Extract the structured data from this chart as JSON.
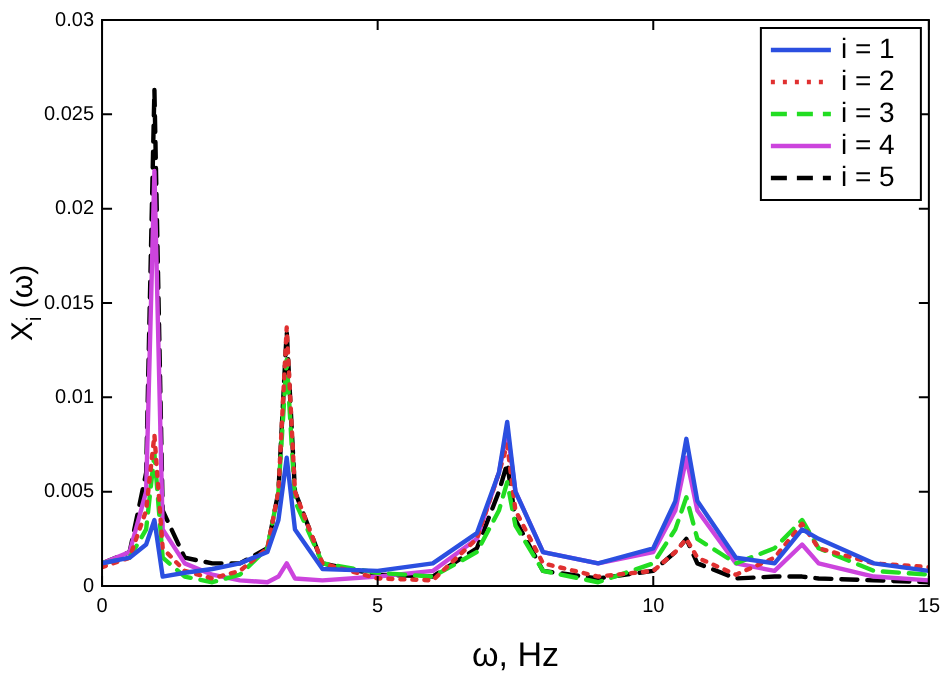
{
  "chart_data": {
    "type": "line",
    "xlabel": "ω, Hz",
    "ylabel": "X$_{i}$ (ω)",
    "x": [
      0,
      0.5,
      0.8,
      0.95,
      1.1,
      1.5,
      2,
      2.5,
      3,
      3.2,
      3.35,
      3.5,
      4,
      5,
      6,
      6.8,
      7.2,
      7.35,
      7.5,
      8,
      9,
      10,
      10.4,
      10.6,
      10.8,
      11.5,
      12.2,
      12.7,
      13,
      14,
      15
    ],
    "series": [
      {
        "name": "i = 1",
        "color": "#2b4fe0",
        "line_style": "solid",
        "values": [
          0.0012,
          0.0015,
          0.0022,
          0.0035,
          0.0005,
          0.0007,
          0.0009,
          0.0012,
          0.0018,
          0.0035,
          0.0068,
          0.003,
          0.0009,
          0.0008,
          0.0012,
          0.0028,
          0.006,
          0.0087,
          0.005,
          0.0018,
          0.0012,
          0.002,
          0.0045,
          0.0078,
          0.0045,
          0.0015,
          0.0012,
          0.003,
          0.0025,
          0.0012,
          0.0008
        ]
      },
      {
        "name": "i = 2",
        "color": "#e03030",
        "line_style": "dotted",
        "values": [
          0.001,
          0.0015,
          0.004,
          0.008,
          0.002,
          0.0008,
          0.0004,
          0.0008,
          0.002,
          0.005,
          0.0137,
          0.005,
          0.0012,
          0.0004,
          0.0003,
          0.0025,
          0.006,
          0.0075,
          0.004,
          0.0012,
          0.0005,
          0.0008,
          0.0018,
          0.0025,
          0.0015,
          0.0006,
          0.0015,
          0.0033,
          0.002,
          0.0012,
          0.001
        ]
      },
      {
        "name": "i = 3",
        "color": "#22dd22",
        "line_style": "dashed",
        "values": [
          0.0012,
          0.0015,
          0.003,
          0.007,
          0.0015,
          0.0005,
          0.0002,
          0.0006,
          0.002,
          0.005,
          0.012,
          0.0045,
          0.0012,
          0.0007,
          0.0005,
          0.0018,
          0.004,
          0.0055,
          0.0032,
          0.0008,
          0.0002,
          0.0012,
          0.003,
          0.0047,
          0.0025,
          0.0012,
          0.002,
          0.0035,
          0.002,
          0.0008,
          0.0006
        ]
      },
      {
        "name": "i = 4",
        "color": "#cc44dd",
        "line_style": "solid",
        "values": [
          0.0012,
          0.0018,
          0.005,
          0.022,
          0.003,
          0.0012,
          0.0006,
          0.0003,
          0.0002,
          0.0005,
          0.0012,
          0.0004,
          0.0003,
          0.0005,
          0.0008,
          0.0025,
          0.006,
          0.0083,
          0.005,
          0.0018,
          0.0012,
          0.0018,
          0.004,
          0.0068,
          0.004,
          0.0012,
          0.0008,
          0.0022,
          0.0012,
          0.0005,
          0.0003
        ]
      },
      {
        "name": "i = 5",
        "color": "#000000",
        "line_style": "dashed",
        "values": [
          0.0012,
          0.0018,
          0.006,
          0.0263,
          0.004,
          0.0015,
          0.0012,
          0.0012,
          0.002,
          0.005,
          0.0135,
          0.005,
          0.0012,
          0.0006,
          0.0005,
          0.002,
          0.005,
          0.0065,
          0.0035,
          0.0008,
          0.0004,
          0.0008,
          0.0018,
          0.0025,
          0.0012,
          0.0004,
          0.0005,
          0.0005,
          0.0004,
          0.0003,
          0.0002
        ]
      }
    ],
    "xlim": [
      0,
      15
    ],
    "xticks": [
      0,
      5,
      10,
      15
    ],
    "ylim": [
      0,
      0.03
    ],
    "yticks": [
      0,
      0.005,
      0.01,
      0.015,
      0.02,
      0.025,
      0.03
    ],
    "grid": false,
    "legend": "top right",
    "marker": "none"
  }
}
